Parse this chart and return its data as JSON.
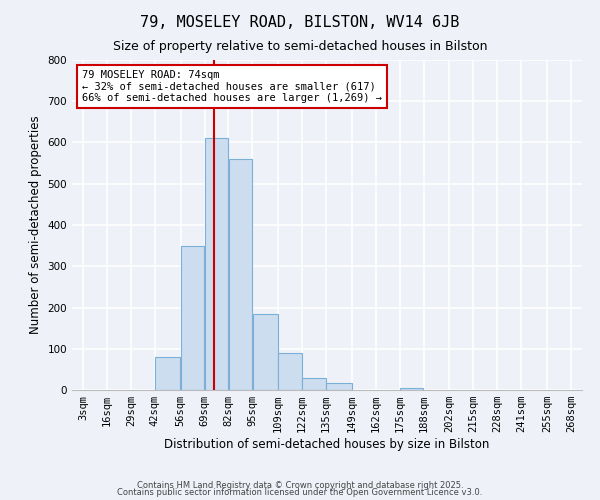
{
  "title": "79, MOSELEY ROAD, BILSTON, WV14 6JB",
  "subtitle": "Size of property relative to semi-detached houses in Bilston",
  "xlabel": "Distribution of semi-detached houses by size in Bilston",
  "ylabel": "Number of semi-detached properties",
  "footnote1": "Contains HM Land Registry data © Crown copyright and database right 2025.",
  "footnote2": "Contains public sector information licensed under the Open Government Licence v3.0.",
  "bin_edges": [
    3,
    16,
    29,
    42,
    56,
    69,
    82,
    95,
    109,
    122,
    135,
    149,
    162,
    175,
    188,
    202,
    215,
    228,
    241,
    255,
    268
  ],
  "bar_heights": [
    0,
    0,
    0,
    80,
    350,
    610,
    560,
    185,
    90,
    30,
    18,
    0,
    0,
    5,
    0,
    0,
    0,
    0,
    0,
    0
  ],
  "bar_color": "#ccddf0",
  "bar_edge_color": "#7ab0d8",
  "property_size": 74,
  "red_line_color": "#cc0000",
  "annotation_line1": "79 MOSELEY ROAD: 74sqm",
  "annotation_line2": "← 32% of semi-detached houses are smaller (617)",
  "annotation_line3": "66% of semi-detached houses are larger (1,269) →",
  "annotation_box_color": "#ffffff",
  "annotation_box_edge": "#cc0000",
  "ylim": [
    0,
    800
  ],
  "yticks": [
    0,
    100,
    200,
    300,
    400,
    500,
    600,
    700,
    800
  ],
  "background_color": "#eef2f8",
  "grid_color": "#ffffff",
  "title_fontsize": 11,
  "subtitle_fontsize": 9,
  "axis_label_fontsize": 8.5,
  "tick_fontsize": 7.5,
  "annotation_fontsize": 7.5,
  "footnote_fontsize": 6.0
}
